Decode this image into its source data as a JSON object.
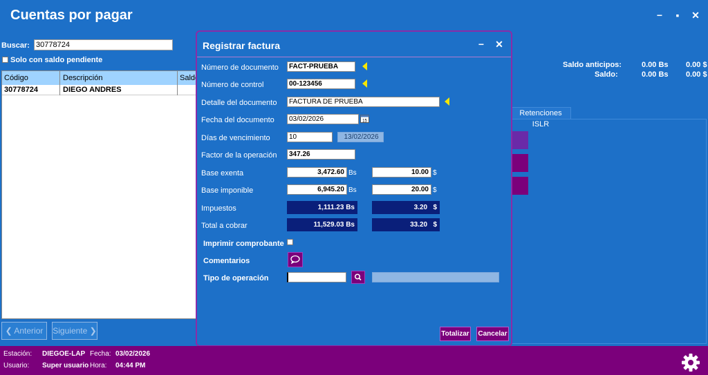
{
  "window": {
    "title": "Cuentas por pagar",
    "minimize": "−",
    "maximize": "▪",
    "close": "✕"
  },
  "left": {
    "search_label": "Buscar:",
    "search_value": "30778724",
    "pending_label": "Solo con saldo pendiente",
    "columns": [
      "Código",
      "Descripción",
      "Saldo"
    ],
    "rows": [
      {
        "codigo": "30778724",
        "descripcion": "DIEGO ANDRES"
      }
    ],
    "prev_button": "Anterior",
    "next_button": "Siguiente"
  },
  "summary": {
    "saldo_anticipos_label": "Saldo anticipos:",
    "saldo_anticipos_bs": "0.00 Bs",
    "saldo_anticipos_usd": "0.00 $",
    "saldo_label": "Saldo:",
    "saldo_bs": "0.00 Bs",
    "saldo_usd": "0.00 $",
    "tab_retenciones": "Retenciones ISLR"
  },
  "dialog": {
    "title": "Registrar factura",
    "min": "−",
    "close": "✕",
    "numero_documento_label": "Número de documento",
    "numero_documento": "FACT-PRUEBA",
    "numero_control_label": "Número de control",
    "numero_control": "00-123456",
    "detalle_label": "Detalle del documento",
    "detalle": "FACTURA DE PRUEBA",
    "fecha_label": "Fecha del documento",
    "fecha": "03/02/2026",
    "dias_label": "Días de vencimiento",
    "dias": "10",
    "vencimiento": "13/02/2026",
    "factor_label": "Factor de la operación",
    "factor": "347.26",
    "base_exenta_label": "Base exenta",
    "base_exenta_bs": "3,472.60",
    "base_exenta_usd": "10.00",
    "base_imponible_label": "Base imponible",
    "base_imponible_bs": "6,945.20",
    "base_imponible_usd": "20.00",
    "impuestos_label": "Impuestos",
    "impuestos_bs": "1,111.23 Bs",
    "impuestos_usd": "3.20",
    "total_label": "Total a cobrar",
    "total_bs": "11,529.03 Bs",
    "total_usd": "33.20",
    "unit_bs": "Bs",
    "unit_usd": "$",
    "imprimir_label": "Imprimir comprobante",
    "comentarios_label": "Comentarios",
    "tipo_label": "Tipo de operación",
    "tipo_value": "",
    "totalizar": "Totalizar",
    "cancelar": "Cancelar"
  },
  "status": {
    "estacion_label": "Estación:",
    "estacion": "DIEGOE-LAP",
    "fecha_label": "Fecha:",
    "fecha": "03/02/2026",
    "usuario_label": "Usuario:",
    "usuario": "Super usuario",
    "hora_label": "Hora:",
    "hora": "04:44 PM"
  },
  "colors": {
    "background": "#1d70c8",
    "accent": "#7b007b",
    "dark_field": "#0a1f7a",
    "marker": "#f7e600"
  },
  "icons": [
    "calendar-icon",
    "comment-icon",
    "search-icon",
    "gear-icon",
    "chevron-left-icon",
    "chevron-right-icon"
  ]
}
